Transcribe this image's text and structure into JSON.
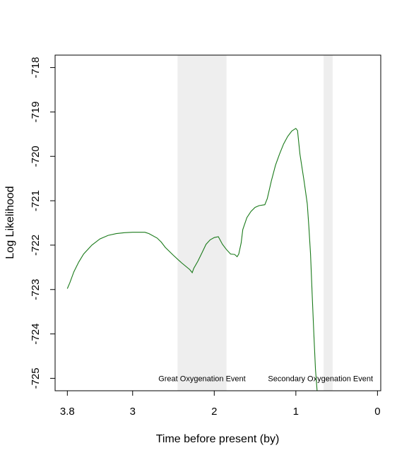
{
  "chart_data": {
    "type": "line",
    "title": "",
    "xlabel": "Time before present (by)",
    "ylabel": "Log Likelihood",
    "xlim": [
      3.95,
      -0.04
    ],
    "ylim": [
      -725.28,
      -717.72
    ],
    "x_ticks": [
      3.8,
      3,
      2,
      1,
      0
    ],
    "x_tick_labels": [
      "3.8",
      "3",
      "2",
      "1",
      "0"
    ],
    "y_ticks": [
      -718,
      -719,
      -720,
      -721,
      -722,
      -723,
      -724,
      -725
    ],
    "y_tick_labels": [
      "-718",
      "-719",
      "-720",
      "-721",
      "-722",
      "-723",
      "-724",
      "-725"
    ],
    "grid": false,
    "line_color": "#1a7a1a",
    "shaded_color": "#eeeeee",
    "shaded_regions": [
      {
        "from": 2.45,
        "to": 1.85,
        "label": "Great Oxygenation Event"
      },
      {
        "from": 0.66,
        "to": 0.55,
        "label": "Secondary Oxygenation Event"
      }
    ],
    "series": [
      {
        "points": [
          [
            3.8,
            -722.98
          ],
          [
            3.77,
            -722.85
          ],
          [
            3.72,
            -722.6
          ],
          [
            3.66,
            -722.38
          ],
          [
            3.6,
            -722.2
          ],
          [
            3.5,
            -722.0
          ],
          [
            3.4,
            -721.86
          ],
          [
            3.3,
            -721.78
          ],
          [
            3.2,
            -721.74
          ],
          [
            3.1,
            -721.72
          ],
          [
            3.0,
            -721.71
          ],
          [
            2.9,
            -721.71
          ],
          [
            2.85,
            -721.71
          ],
          [
            2.8,
            -721.74
          ],
          [
            2.7,
            -721.84
          ],
          [
            2.65,
            -721.93
          ],
          [
            2.6,
            -722.05
          ],
          [
            2.5,
            -722.23
          ],
          [
            2.4,
            -722.4
          ],
          [
            2.3,
            -722.55
          ],
          [
            2.27,
            -722.62
          ],
          [
            2.25,
            -722.52
          ],
          [
            2.2,
            -722.36
          ],
          [
            2.15,
            -722.17
          ],
          [
            2.1,
            -721.98
          ],
          [
            2.05,
            -721.88
          ],
          [
            2.0,
            -721.83
          ],
          [
            1.95,
            -721.81
          ],
          [
            1.9,
            -721.98
          ],
          [
            1.85,
            -722.1
          ],
          [
            1.8,
            -722.2
          ],
          [
            1.75,
            -722.21
          ],
          [
            1.72,
            -722.26
          ],
          [
            1.7,
            -722.2
          ],
          [
            1.67,
            -721.95
          ],
          [
            1.65,
            -721.65
          ],
          [
            1.6,
            -721.38
          ],
          [
            1.55,
            -721.24
          ],
          [
            1.5,
            -721.15
          ],
          [
            1.45,
            -721.11
          ],
          [
            1.38,
            -721.09
          ],
          [
            1.35,
            -720.95
          ],
          [
            1.3,
            -720.55
          ],
          [
            1.25,
            -720.2
          ],
          [
            1.2,
            -719.95
          ],
          [
            1.15,
            -719.72
          ],
          [
            1.1,
            -719.55
          ],
          [
            1.05,
            -719.43
          ],
          [
            1.0,
            -719.37
          ],
          [
            0.98,
            -719.42
          ],
          [
            0.95,
            -719.95
          ],
          [
            0.9,
            -720.55
          ],
          [
            0.86,
            -721.07
          ],
          [
            0.84,
            -721.6
          ],
          [
            0.82,
            -722.2
          ],
          [
            0.8,
            -723.1
          ],
          [
            0.78,
            -724.0
          ],
          [
            0.76,
            -724.8
          ],
          [
            0.74,
            -725.28
          ]
        ]
      }
    ]
  }
}
